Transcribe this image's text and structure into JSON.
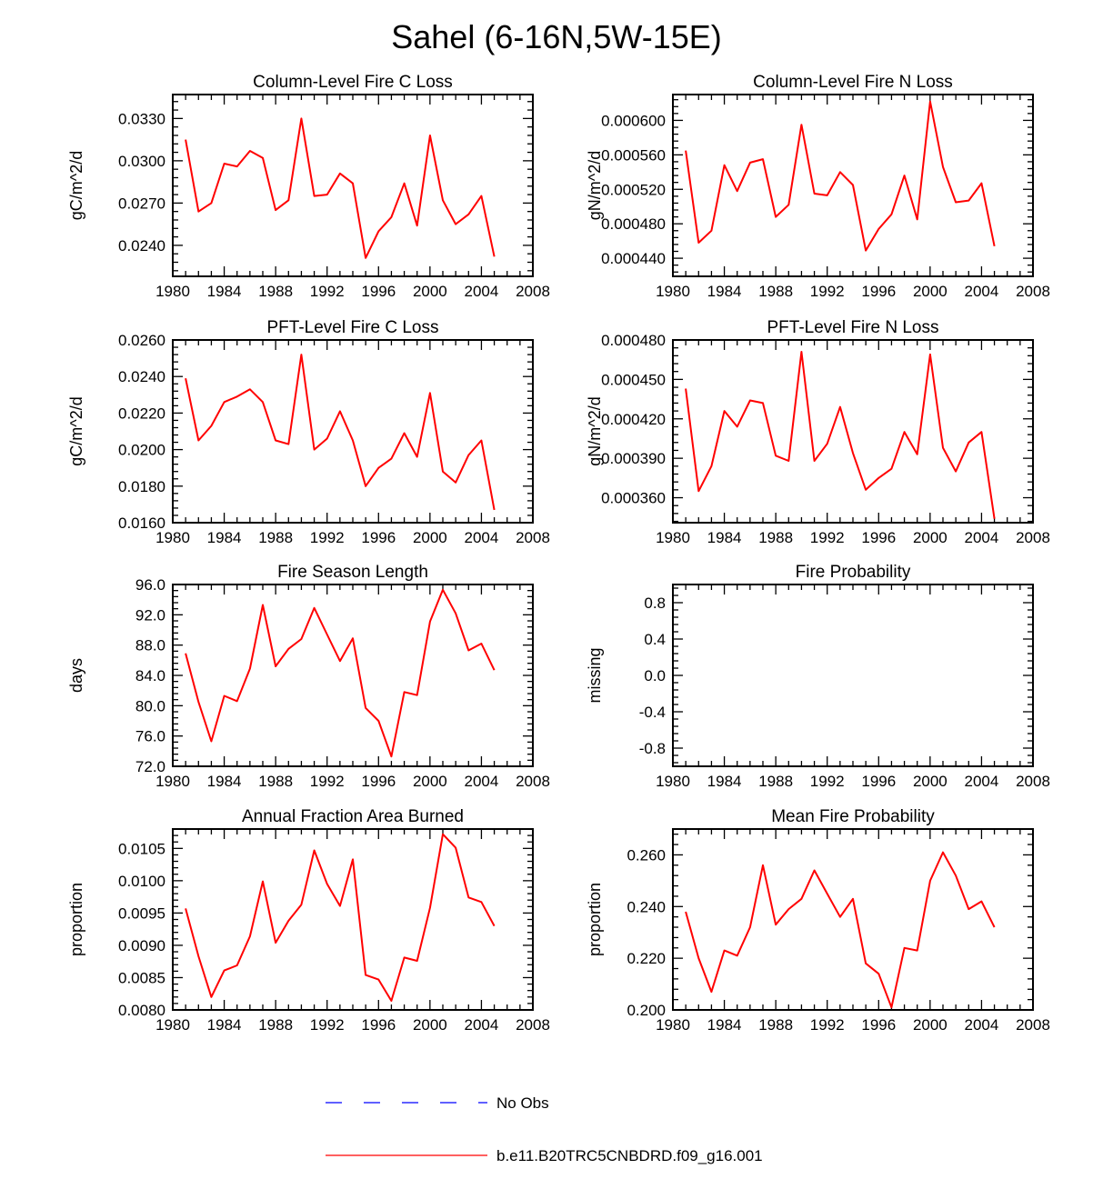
{
  "figure_title": "Sahel (6-16N,5W-15E)",
  "colors": {
    "model": "#ff0000",
    "obs": "#0000ff",
    "axis": "#000000"
  },
  "legend": [
    {
      "label": "No Obs",
      "style": "dashed",
      "color": "#0000ff"
    },
    {
      "label": "b.e11.B20TRC5CNBDRD.f09_g16.001",
      "style": "solid",
      "color": "#ff0000"
    }
  ],
  "chart_data": [
    {
      "type": "line",
      "title": "Column-Level Fire C Loss",
      "ylabel": "gC/m^2/d",
      "xlim": [
        1980,
        2008
      ],
      "ylim": [
        0.0218,
        0.0347
      ],
      "xticks": [
        "1980",
        "1984",
        "1988",
        "1992",
        "1996",
        "2000",
        "2004",
        "2008"
      ],
      "yticks": [
        "0.0240",
        "0.0270",
        "0.0300",
        "0.0330"
      ],
      "series": [
        {
          "name": "b.e11.B20TRC5CNBDRD.f09_g16.001",
          "x": [
            1981,
            1982,
            1983,
            1984,
            1985,
            1986,
            1987,
            1988,
            1989,
            1990,
            1991,
            1992,
            1993,
            1994,
            1995,
            1996,
            1997,
            1998,
            1999,
            2000,
            2001,
            2002,
            2003,
            2004,
            2005
          ],
          "values": [
            0.0315,
            0.0264,
            0.027,
            0.0298,
            0.0296,
            0.0307,
            0.0302,
            0.0265,
            0.0272,
            0.033,
            0.0275,
            0.0276,
            0.0291,
            0.0284,
            0.0231,
            0.025,
            0.026,
            0.0284,
            0.0254,
            0.0318,
            0.0272,
            0.0255,
            0.0262,
            0.0275,
            0.0232
          ]
        }
      ]
    },
    {
      "type": "line",
      "title": "Column-Level Fire N Loss",
      "ylabel": "gN/m^2/d",
      "xlim": [
        1980,
        2008
      ],
      "ylim": [
        0.000419,
        0.00063
      ],
      "xticks": [
        "1980",
        "1984",
        "1988",
        "1992",
        "1996",
        "2000",
        "2004",
        "2008"
      ],
      "yticks": [
        "0.000440",
        "0.000480",
        "0.000520",
        "0.000560",
        "0.000600"
      ],
      "series": [
        {
          "name": "b.e11.B20TRC5CNBDRD.f09_g16.001",
          "x": [
            1981,
            1982,
            1983,
            1984,
            1985,
            1986,
            1987,
            1988,
            1989,
            1990,
            1991,
            1992,
            1993,
            1994,
            1995,
            1996,
            1997,
            1998,
            1999,
            2000,
            2001,
            2002,
            2003,
            2004,
            2005
          ],
          "values": [
            0.000565,
            0.000458,
            0.000472,
            0.000548,
            0.000518,
            0.000551,
            0.000555,
            0.000488,
            0.000502,
            0.000595,
            0.000515,
            0.000513,
            0.00054,
            0.000525,
            0.000449,
            0.000474,
            0.000491,
            0.000536,
            0.000485,
            0.000622,
            0.000546,
            0.000505,
            0.000507,
            0.000527,
            0.000454
          ]
        }
      ]
    },
    {
      "type": "line",
      "title": "PFT-Level Fire C Loss",
      "ylabel": "gC/m^2/d",
      "xlim": [
        1980,
        2008
      ],
      "ylim": [
        0.016,
        0.026
      ],
      "xticks": [
        "1980",
        "1984",
        "1988",
        "1992",
        "1996",
        "2000",
        "2004",
        "2008"
      ],
      "yticks": [
        "0.0160",
        "0.0180",
        "0.0200",
        "0.0220",
        "0.0240",
        "0.0260"
      ],
      "series": [
        {
          "name": "b.e11.B20TRC5CNBDRD.f09_g16.001",
          "x": [
            1981,
            1982,
            1983,
            1984,
            1985,
            1986,
            1987,
            1988,
            1989,
            1990,
            1991,
            1992,
            1993,
            1994,
            1995,
            1996,
            1997,
            1998,
            1999,
            2000,
            2001,
            2002,
            2003,
            2004,
            2005
          ],
          "values": [
            0.0239,
            0.0205,
            0.0213,
            0.0226,
            0.0229,
            0.0233,
            0.0226,
            0.0205,
            0.0203,
            0.0252,
            0.02,
            0.0206,
            0.0221,
            0.0205,
            0.018,
            0.019,
            0.0195,
            0.0209,
            0.0196,
            0.0231,
            0.0188,
            0.0182,
            0.0197,
            0.0205,
            0.0167
          ]
        }
      ]
    },
    {
      "type": "line",
      "title": "PFT-Level Fire N Loss",
      "ylabel": "gN/m^2/d",
      "xlim": [
        1980,
        2008
      ],
      "ylim": [
        0.000341,
        0.00048
      ],
      "xticks": [
        "1980",
        "1984",
        "1988",
        "1992",
        "1996",
        "2000",
        "2004",
        "2008"
      ],
      "yticks": [
        "0.000360",
        "0.000390",
        "0.000420",
        "0.000450",
        "0.000480"
      ],
      "series": [
        {
          "name": "b.e11.B20TRC5CNBDRD.f09_g16.001",
          "x": [
            1981,
            1982,
            1983,
            1984,
            1985,
            1986,
            1987,
            1988,
            1989,
            1990,
            1991,
            1992,
            1993,
            1994,
            1995,
            1996,
            1997,
            1998,
            1999,
            2000,
            2001,
            2002,
            2003,
            2004,
            2005
          ],
          "values": [
            0.000443,
            0.000365,
            0.000384,
            0.000426,
            0.000414,
            0.000434,
            0.000432,
            0.000392,
            0.000388,
            0.000471,
            0.000388,
            0.000401,
            0.000429,
            0.000394,
            0.000366,
            0.000375,
            0.000382,
            0.00041,
            0.000393,
            0.000469,
            0.000398,
            0.00038,
            0.000402,
            0.00041,
            0.000344
          ]
        }
      ]
    },
    {
      "type": "line",
      "title": "Fire Season Length",
      "ylabel": "days",
      "xlim": [
        1980,
        2008
      ],
      "ylim": [
        72.0,
        96.0
      ],
      "xticks": [
        "1980",
        "1984",
        "1988",
        "1992",
        "1996",
        "2000",
        "2004",
        "2008"
      ],
      "yticks": [
        "72.0",
        "76.0",
        "80.0",
        "84.0",
        "88.0",
        "92.0",
        "96.0"
      ],
      "series": [
        {
          "name": "b.e11.B20TRC5CNBDRD.f09_g16.001",
          "x": [
            1981,
            1982,
            1983,
            1984,
            1985,
            1986,
            1987,
            1988,
            1989,
            1990,
            1991,
            1992,
            1993,
            1994,
            1995,
            1996,
            1997,
            1998,
            1999,
            2000,
            2001,
            2002,
            2003,
            2004,
            2005
          ],
          "values": [
            86.9,
            80.5,
            75.3,
            81.3,
            80.6,
            84.9,
            93.3,
            85.2,
            87.5,
            88.8,
            92.9,
            89.4,
            85.9,
            88.9,
            79.7,
            78.0,
            73.3,
            81.8,
            81.4,
            91.1,
            95.3,
            92.2,
            87.3,
            88.2,
            84.7
          ]
        }
      ]
    },
    {
      "type": "line",
      "title": "Fire Probability",
      "ylabel": "missing",
      "xlim": [
        1980,
        2008
      ],
      "ylim": [
        -1.0,
        1.0
      ],
      "xticks": [
        "1980",
        "1984",
        "1988",
        "1992",
        "1996",
        "2000",
        "2004",
        "2008"
      ],
      "yticks": [
        "-0.8",
        "-0.4",
        "0.0",
        "0.4",
        "0.8"
      ],
      "series": []
    },
    {
      "type": "line",
      "title": "Annual Fraction Area Burned",
      "ylabel": "proportion",
      "xlim": [
        1980,
        2008
      ],
      "ylim": [
        0.008,
        0.0108
      ],
      "xticks": [
        "1980",
        "1984",
        "1988",
        "1992",
        "1996",
        "2000",
        "2004",
        "2008"
      ],
      "yticks": [
        "0.0080",
        "0.0085",
        "0.0090",
        "0.0095",
        "0.0100",
        "0.0105"
      ],
      "series": [
        {
          "name": "b.e11.B20TRC5CNBDRD.f09_g16.001",
          "x": [
            1981,
            1982,
            1983,
            1984,
            1985,
            1986,
            1987,
            1988,
            1989,
            1990,
            1991,
            1992,
            1993,
            1994,
            1995,
            1996,
            1997,
            1998,
            1999,
            2000,
            2001,
            2002,
            2003,
            2004,
            2005
          ],
          "values": [
            0.00957,
            0.00883,
            0.0082,
            0.00861,
            0.00869,
            0.00914,
            0.00999,
            0.00904,
            0.00938,
            0.00963,
            0.01047,
            0.00995,
            0.00961,
            0.01033,
            0.00854,
            0.00847,
            0.00814,
            0.00881,
            0.00876,
            0.00958,
            0.01072,
            0.01051,
            0.00974,
            0.00967,
            0.0093
          ]
        }
      ]
    },
    {
      "type": "line",
      "title": "Mean Fire Probability",
      "ylabel": "proportion",
      "xlim": [
        1980,
        2008
      ],
      "ylim": [
        0.2,
        0.27
      ],
      "xticks": [
        "1980",
        "1984",
        "1988",
        "1992",
        "1996",
        "2000",
        "2004",
        "2008"
      ],
      "yticks": [
        "0.200",
        "0.220",
        "0.240",
        "0.260"
      ],
      "series": [
        {
          "name": "b.e11.B20TRC5CNBDRD.f09_g16.001",
          "x": [
            1981,
            1982,
            1983,
            1984,
            1985,
            1986,
            1987,
            1988,
            1989,
            1990,
            1991,
            1992,
            1993,
            1994,
            1995,
            1996,
            1997,
            1998,
            1999,
            2000,
            2001,
            2002,
            2003,
            2004,
            2005
          ],
          "values": [
            0.238,
            0.22,
            0.207,
            0.223,
            0.221,
            0.232,
            0.256,
            0.233,
            0.239,
            0.243,
            0.254,
            0.245,
            0.236,
            0.243,
            0.218,
            0.214,
            0.201,
            0.224,
            0.223,
            0.25,
            0.261,
            0.252,
            0.239,
            0.242,
            0.232
          ]
        }
      ]
    }
  ]
}
